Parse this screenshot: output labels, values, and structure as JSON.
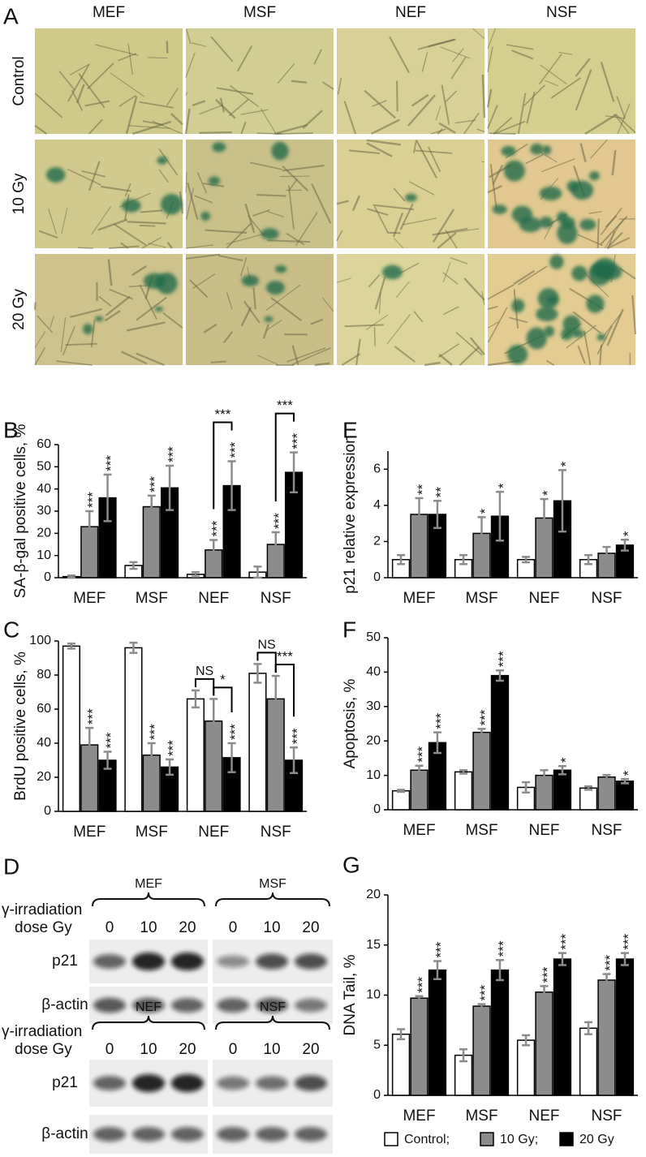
{
  "micrographs": {
    "panel_label": "A",
    "columns": [
      "MEF",
      "MSF",
      "NEF",
      "NSF"
    ],
    "rows": [
      "Control",
      "10 Gy",
      "20 Gy"
    ]
  },
  "western_blot": {
    "panel_label": "D",
    "blots": [
      {
        "treatment_label": "γ-irradiation",
        "dose_label": "dose Gy",
        "groups": [
          {
            "name": "MEF",
            "doses": [
              0,
              10,
              20
            ]
          },
          {
            "name": "MSF",
            "doses": [
              0,
              10,
              20
            ]
          }
        ],
        "rows": [
          "p21",
          "β-actin"
        ]
      },
      {
        "treatment_label": "γ-irradiation",
        "dose_label": "dose Gy",
        "groups": [
          {
            "name": "NEF",
            "doses": [
              0,
              10,
              20
            ]
          },
          {
            "name": "NSF",
            "doses": [
              0,
              10,
              20
            ]
          }
        ],
        "rows": [
          "p21",
          "β-actin"
        ]
      }
    ]
  },
  "chart_data": [
    {
      "type": "bar",
      "panel_label": "B",
      "ylabel": "SA-β-gal positive cells, %",
      "categories": [
        "MEF",
        "MSF",
        "NEF",
        "NSF"
      ],
      "ylim": [
        0,
        60
      ],
      "yticks": [
        0,
        10,
        20,
        30,
        40,
        50,
        60
      ],
      "series": [
        {
          "name": "Control;",
          "color": "#ffffff",
          "values": [
            0.5,
            5.5,
            1.5,
            2.5
          ],
          "errors": [
            0.5,
            1.5,
            1,
            2.5
          ],
          "significance": [
            null,
            null,
            null,
            null
          ]
        },
        {
          "name": "10 Gy;",
          "color": "#8c8c8c",
          "values": [
            23,
            32,
            12.5,
            15
          ],
          "errors": [
            7,
            5,
            4.5,
            5.5
          ],
          "significance": [
            "***",
            "***",
            "***",
            "***"
          ]
        },
        {
          "name": "20 Gy",
          "color": "#000000",
          "values": [
            36,
            40.5,
            41.5,
            47.5
          ],
          "errors": [
            10.5,
            10,
            11,
            9
          ],
          "significance": [
            "***",
            "***",
            "***",
            "***"
          ]
        }
      ],
      "comparisons": {
        "10_vs_20": [
          null,
          null,
          "***",
          "***"
        ]
      }
    },
    {
      "type": "bar",
      "panel_label": "E",
      "ylabel": "p21 relative expression",
      "categories": [
        "MEF",
        "MSF",
        "NEF",
        "NSF"
      ],
      "ylim": [
        0,
        7
      ],
      "yticks": [
        0,
        2,
        4,
        6
      ],
      "series": [
        {
          "name": "Control;",
          "color": "#ffffff",
          "values": [
            1,
            1,
            1,
            1
          ],
          "errors": [
            0.25,
            0.25,
            0.15,
            0.25
          ],
          "significance": [
            null,
            null,
            null,
            null
          ]
        },
        {
          "name": "10 Gy;",
          "color": "#8c8c8c",
          "values": [
            3.5,
            2.45,
            3.3,
            1.35
          ],
          "errors": [
            0.9,
            0.9,
            1.05,
            0.35
          ],
          "significance": [
            "**",
            "*",
            "*",
            null
          ]
        },
        {
          "name": "20 Gy",
          "color": "#000000",
          "values": [
            3.5,
            3.4,
            4.25,
            1.8
          ],
          "errors": [
            0.75,
            1.35,
            1.7,
            0.3
          ],
          "significance": [
            "**",
            "*",
            "*",
            "*"
          ]
        }
      ]
    },
    {
      "type": "bar",
      "panel_label": "C",
      "ylabel": "BrdU positive cells, %",
      "categories": [
        "MEF",
        "MSF",
        "NEF",
        "NSF"
      ],
      "ylim": [
        0,
        100
      ],
      "yticks": [
        0,
        20,
        40,
        60,
        80,
        100
      ],
      "series": [
        {
          "name": "Control;",
          "color": "#ffffff",
          "values": [
            97,
            96,
            66,
            81
          ],
          "errors": [
            1.5,
            3,
            5,
            5.5
          ],
          "significance": [
            null,
            null,
            null,
            null
          ]
        },
        {
          "name": "10 Gy;",
          "color": "#8c8c8c",
          "values": [
            39,
            33,
            53,
            66
          ],
          "errors": [
            10,
            7,
            13,
            13.5
          ],
          "significance": [
            "***",
            "***",
            null,
            null
          ]
        },
        {
          "name": "20 Gy",
          "color": "#000000",
          "values": [
            30,
            26,
            31.5,
            30
          ],
          "errors": [
            5,
            4.5,
            8.5,
            7.5
          ],
          "significance": [
            "***",
            "***",
            "***",
            "***"
          ]
        }
      ],
      "comparisons": {
        "control_vs_10": [
          null,
          null,
          "NS",
          "NS"
        ],
        "10_vs_20": [
          null,
          null,
          "*",
          "***"
        ]
      }
    },
    {
      "type": "bar",
      "panel_label": "F",
      "ylabel": "Apoptosis, %",
      "categories": [
        "MEF",
        "MSF",
        "NEF",
        "NSF"
      ],
      "ylim": [
        0,
        50
      ],
      "yticks": [
        0,
        10,
        20,
        30,
        40,
        50
      ],
      "series": [
        {
          "name": "Control;",
          "color": "#ffffff",
          "values": [
            5.5,
            11,
            6.5,
            6.3
          ],
          "errors": [
            0.3,
            0.5,
            1.5,
            0.5
          ],
          "significance": [
            null,
            null,
            null,
            null
          ]
        },
        {
          "name": "10 Gy;",
          "color": "#8c8c8c",
          "values": [
            11.5,
            22.5,
            10,
            9.5
          ],
          "errors": [
            1.3,
            1,
            1.5,
            0.6
          ],
          "significance": [
            "***",
            "***",
            null,
            null
          ]
        },
        {
          "name": "20 Gy",
          "color": "#000000",
          "values": [
            19.5,
            39,
            11.5,
            8.3
          ],
          "errors": [
            3,
            1.5,
            1.2,
            0.6
          ],
          "significance": [
            "***",
            "***",
            "*",
            "*"
          ]
        }
      ]
    },
    {
      "type": "bar",
      "panel_label": "G",
      "ylabel": "DNA Tail, %",
      "categories": [
        "MEF",
        "MSF",
        "NEF",
        "NSF"
      ],
      "ylim": [
        0,
        20
      ],
      "yticks": [
        0,
        5,
        10,
        15,
        20
      ],
      "series": [
        {
          "name": "Control;",
          "color": "#ffffff",
          "values": [
            6.1,
            4.0,
            5.5,
            6.7
          ],
          "errors": [
            0.5,
            0.6,
            0.5,
            0.6
          ],
          "significance": [
            null,
            null,
            null,
            null
          ]
        },
        {
          "name": "10 Gy;",
          "color": "#8c8c8c",
          "values": [
            9.7,
            8.9,
            10.3,
            11.5
          ],
          "errors": [
            0.2,
            0.2,
            0.6,
            0.6
          ],
          "significance": [
            "***",
            "***",
            "***",
            "***"
          ]
        },
        {
          "name": "20 Gy",
          "color": "#000000",
          "values": [
            12.5,
            12.5,
            13.6,
            13.6
          ],
          "errors": [
            0.9,
            1.0,
            0.6,
            0.6
          ],
          "significance": [
            "***",
            "***",
            "***",
            "***"
          ]
        }
      ]
    }
  ]
}
